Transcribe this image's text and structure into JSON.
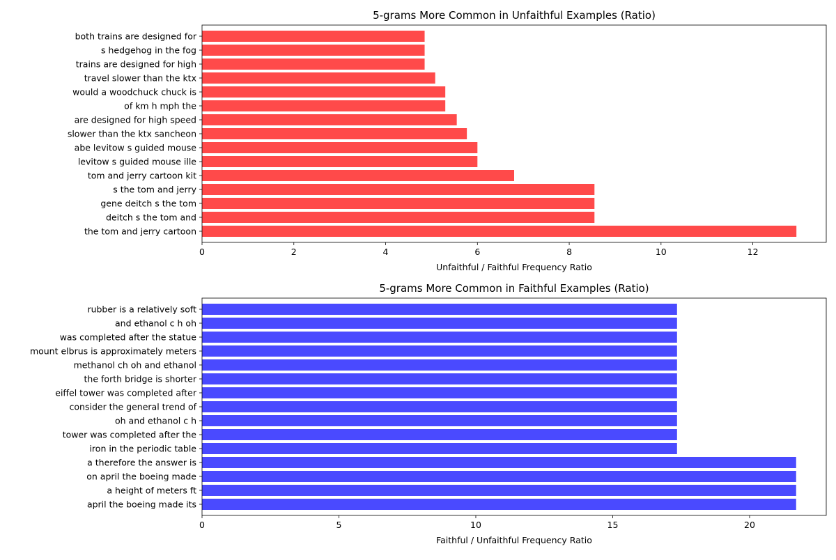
{
  "chart_data": [
    {
      "type": "bar",
      "orientation": "horizontal",
      "title": "5-grams More Common in Unfaithful Examples (Ratio)",
      "xlabel": "Unfaithful / Faithful Frequency Ratio",
      "ylabel": "",
      "xlim": [
        0,
        13.6
      ],
      "xticks": [
        0,
        2,
        4,
        6,
        8,
        10,
        12
      ],
      "color": "#ff4a4a",
      "grid": false,
      "categories": [
        "the tom and jerry cartoon",
        "deitch s the tom and",
        "gene deitch s the tom",
        "s the tom and jerry",
        "tom and jerry cartoon kit",
        "levitow s guided mouse ille",
        "abe levitow s guided mouse",
        "slower than the ktx sancheon",
        "are designed for high speed",
        "of km h mph the",
        "would a woodchuck chuck is",
        "travel slower than the ktx",
        "trains are designed for high",
        "s hedgehog in the fog",
        "both trains are designed for"
      ],
      "values": [
        12.95,
        8.55,
        8.55,
        8.55,
        6.8,
        6.0,
        6.0,
        5.77,
        5.55,
        5.3,
        5.3,
        5.08,
        4.85,
        4.85,
        4.85
      ]
    },
    {
      "type": "bar",
      "orientation": "horizontal",
      "title": "5-grams More Common in Faithful Examples (Ratio)",
      "xlabel": "Faithful / Unfaithful Frequency Ratio",
      "ylabel": "",
      "xlim": [
        0,
        22.8
      ],
      "xticks": [
        0,
        5,
        10,
        15,
        20
      ],
      "color": "#4a4aff",
      "grid": false,
      "categories": [
        "april the boeing made its",
        "a height of meters ft",
        "on april the boeing made",
        "a therefore the answer is",
        "iron in the periodic table",
        "tower was completed after the",
        "oh and ethanol c h",
        "consider the general trend of",
        "eiffel tower was completed after",
        "the forth bridge is shorter",
        "methanol ch oh and ethanol",
        "mount elbrus is approximately meters",
        "was completed after the statue",
        "and ethanol c h oh",
        "rubber is a relatively soft"
      ],
      "values": [
        21.7,
        21.7,
        21.7,
        21.7,
        17.35,
        17.35,
        17.35,
        17.35,
        17.35,
        17.35,
        17.35,
        17.35,
        17.35,
        17.35,
        17.35
      ]
    }
  ]
}
